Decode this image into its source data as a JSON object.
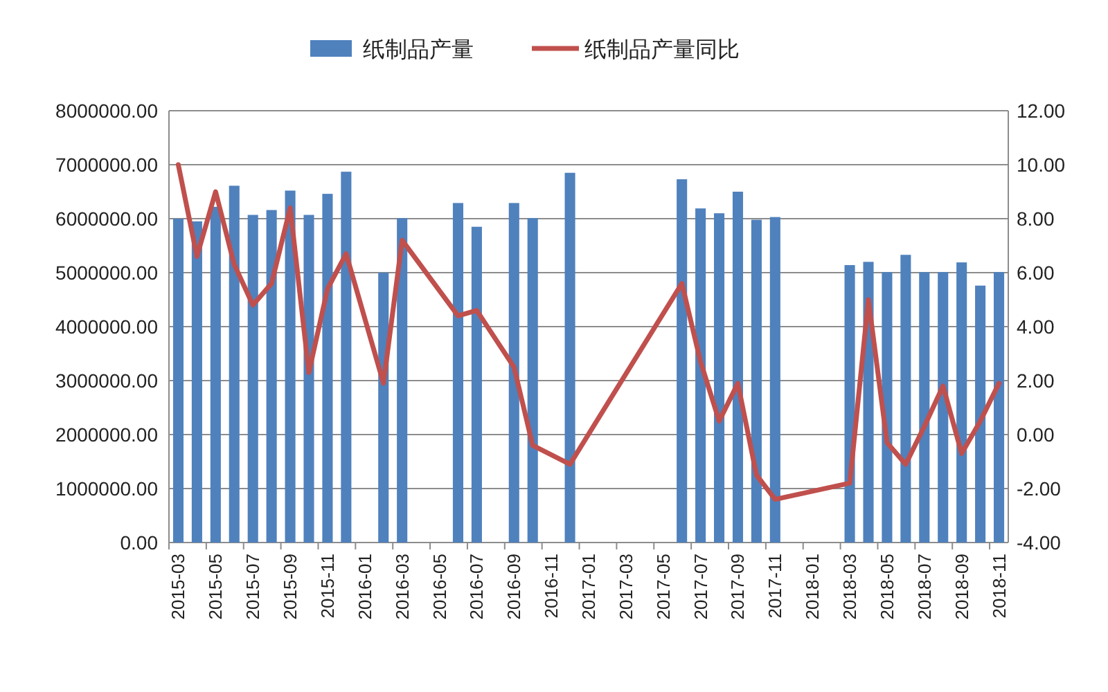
{
  "chart_data": {
    "type": "bar",
    "categories": [
      "2015-03",
      null,
      "2015-05",
      null,
      "2015-07",
      null,
      "2015-09",
      null,
      "2015-11",
      null,
      "2016-01",
      null,
      "2016-03",
      null,
      "2016-05",
      null,
      "2016-07",
      null,
      "2016-09",
      null,
      "2016-11",
      null,
      "2017-01",
      null,
      "2017-03",
      null,
      "2017-05",
      null,
      "2017-07",
      null,
      "2017-09",
      null,
      "2017-11",
      null,
      "2018-01",
      null,
      "2018-03",
      null,
      "2018-05",
      null,
      "2018-07",
      null,
      "2018-09",
      null,
      "2018-11"
    ],
    "series": [
      {
        "name": "纸制品产量",
        "color": "#4f81bd",
        "values": [
          6000000,
          5950000,
          6220000,
          6610000,
          6070000,
          6160000,
          6520000,
          6070000,
          6460000,
          6870000,
          null,
          5000000,
          6010000,
          null,
          null,
          6290000,
          5850000,
          null,
          6290000,
          6010000,
          null,
          6850000,
          null,
          null,
          null,
          null,
          null,
          6730000,
          6190000,
          6100000,
          6500000,
          5980000,
          6030000,
          null,
          null,
          null,
          5140000,
          5200000,
          5010000,
          5330000,
          5010000,
          5010000,
          5190000,
          4760000,
          5010000
        ]
      },
      {
        "name": "纸制品产量同比",
        "type": "line",
        "axis": "y2",
        "color": "#c0504d",
        "values": [
          10.0,
          6.6,
          9.0,
          6.3,
          4.8,
          5.6,
          8.4,
          2.3,
          5.4,
          6.7,
          null,
          1.9,
          7.2,
          null,
          null,
          4.4,
          4.6,
          null,
          2.5,
          -0.4,
          null,
          -1.1,
          null,
          null,
          null,
          null,
          null,
          5.6,
          2.7,
          0.5,
          1.9,
          -1.5,
          -2.4,
          null,
          null,
          null,
          -1.8,
          5.0,
          -0.3,
          -1.1,
          0.3,
          1.8,
          -0.7,
          0.5,
          1.9
        ]
      }
    ],
    "ylim": [
      0,
      8000000
    ],
    "yticks": [
      {
        "value": 0,
        "label": "0.00"
      },
      {
        "value": 1000000,
        "label": "1000000.00"
      },
      {
        "value": 2000000,
        "label": "2000000.00"
      },
      {
        "value": 3000000,
        "label": "3000000.00"
      },
      {
        "value": 4000000,
        "label": "4000000.00"
      },
      {
        "value": 5000000,
        "label": "5000000.00"
      },
      {
        "value": 6000000,
        "label": "6000000.00"
      },
      {
        "value": 7000000,
        "label": "7000000.00"
      },
      {
        "value": 8000000,
        "label": "8000000.00"
      }
    ],
    "y2lim": [
      -4,
      12
    ],
    "y2ticks": [
      {
        "value": -4,
        "label": "-4.00"
      },
      {
        "value": -2,
        "label": "-2.00"
      },
      {
        "value": 0,
        "label": "0.00"
      },
      {
        "value": 2,
        "label": "2.00"
      },
      {
        "value": 4,
        "label": "4.00"
      },
      {
        "value": 6,
        "label": "6.00"
      },
      {
        "value": 8,
        "label": "8.00"
      },
      {
        "value": 10,
        "label": "10.00"
      },
      {
        "value": 12,
        "label": "12.00"
      }
    ],
    "grid": "y",
    "legend": "top"
  }
}
